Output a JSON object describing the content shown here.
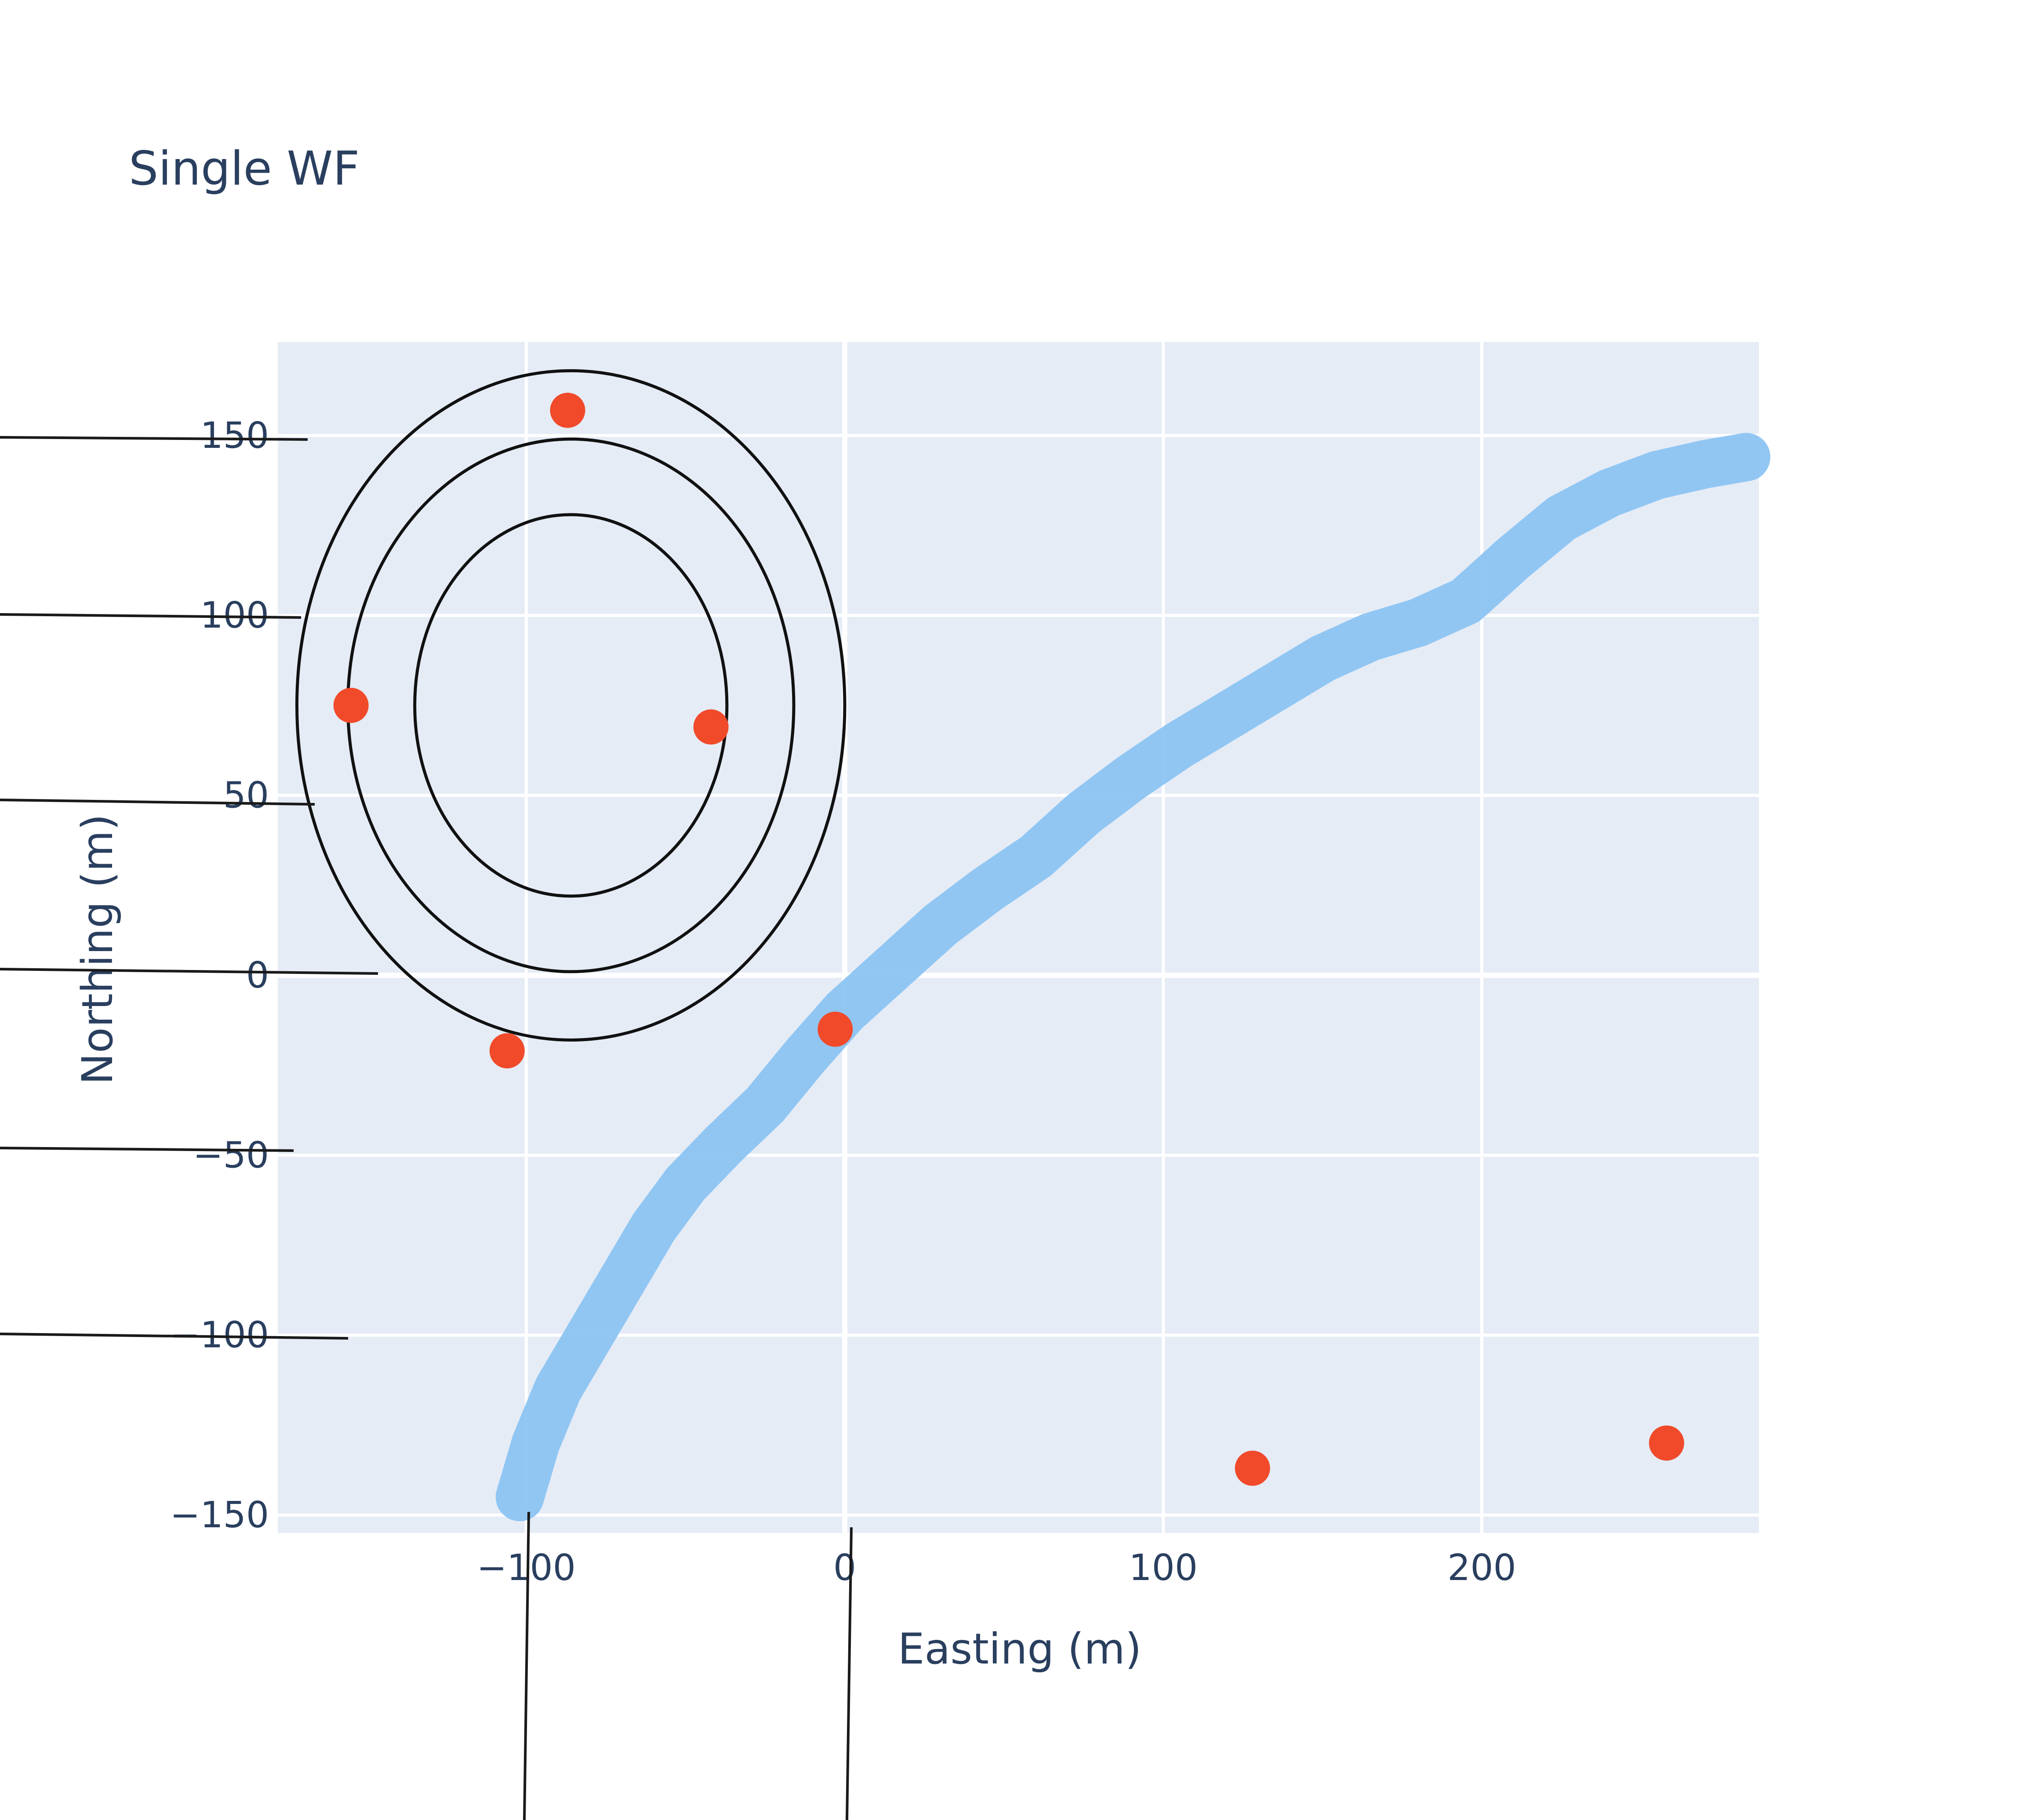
{
  "chart_data": {
    "type": "scatter",
    "title": "Single WF",
    "xlabel": "Easting (m)",
    "ylabel": "Northing (m)",
    "xlim": [
      -178,
      287
    ],
    "ylim": [
      -155,
      176
    ],
    "x_ticks": [
      -100,
      0,
      100,
      200
    ],
    "y_ticks": [
      -150,
      -100,
      -50,
      0,
      50,
      100,
      150
    ],
    "x_tick_labels": [
      "−100",
      "0",
      "100",
      "200"
    ],
    "y_tick_labels": [
      "−150",
      "−100",
      "−50",
      "0",
      "50",
      "100",
      "150"
    ],
    "grid": true,
    "legend": "none",
    "colors": {
      "plot_background": "#e5ecf6",
      "grid": "#ffffff",
      "path": "#8cc4f2",
      "points": "#f04a2a",
      "contours": "#111111",
      "text": "#2a3f5f"
    },
    "path": {
      "x": [
        -102,
        -97,
        -90,
        -80,
        -70,
        -60,
        -50,
        -38,
        -25,
        -12,
        0,
        15,
        30,
        45,
        60,
        75,
        90,
        105,
        120,
        135,
        150,
        165,
        180,
        195,
        210,
        225,
        240,
        255,
        270,
        283
      ],
      "y": [
        -145,
        -130,
        -115,
        -100,
        -85,
        -70,
        -58,
        -47,
        -36,
        -22,
        -10,
        2,
        14,
        24,
        33,
        45,
        55,
        64,
        72,
        80,
        88,
        94,
        98,
        104,
        116,
        127,
        134,
        139,
        142,
        144
      ]
    },
    "points": {
      "x": [
        -87,
        -155,
        -42,
        -106,
        -3,
        128,
        258
      ],
      "y": [
        157,
        75,
        69,
        -21,
        -15,
        -137,
        -130
      ]
    },
    "contours": [
      {
        "cx": -86,
        "cy": 75,
        "rx": 49,
        "ry": 53
      },
      {
        "cx": -86,
        "cy": 75,
        "rx": 70,
        "ry": 74
      },
      {
        "cx": -86,
        "cy": 75,
        "rx": 86,
        "ry": 93
      }
    ]
  }
}
